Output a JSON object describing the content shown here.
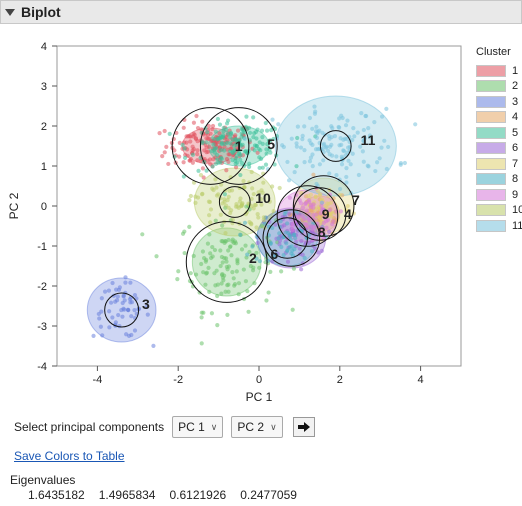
{
  "panel": {
    "title": "Biplot"
  },
  "chart_data": {
    "type": "scatter",
    "xlabel": "PC 1",
    "ylabel": "PC 2",
    "xlim": [
      -5,
      5
    ],
    "ylim": [
      -4,
      4
    ],
    "xticks": [
      "-4",
      "-2",
      "0",
      "2",
      "4"
    ],
    "yticks": [
      "-4",
      "-3",
      "-2",
      "-1",
      "0",
      "1",
      "2",
      "3",
      "4"
    ],
    "legend_title": "Cluster",
    "clusters": [
      {
        "name": "1",
        "color": "#e0525f",
        "center": [
          -1.2,
          1.5
        ],
        "spread": [
          0.55,
          0.3
        ],
        "ellipse": [
          0.7,
          0.45
        ],
        "circle_r": 0.95,
        "label_at": [
          -0.5,
          1.5
        ],
        "n": 160
      },
      {
        "name": "2",
        "color": "#6cc26c",
        "center": [
          -0.8,
          -1.4
        ],
        "spread": [
          0.6,
          0.6
        ],
        "ellipse": [
          0.85,
          0.85
        ],
        "circle_r": 1.0,
        "label_at": [
          -0.15,
          -1.3
        ],
        "n": 130
      },
      {
        "name": "3",
        "color": "#6a82dd",
        "center": [
          -3.4,
          -2.6
        ],
        "spread": [
          0.35,
          0.35
        ],
        "ellipse": [
          0.85,
          0.8
        ],
        "circle_r": 0.42,
        "label_at": [
          -2.8,
          -2.45
        ],
        "n": 60
      },
      {
        "name": "4",
        "color": "#e6a868",
        "center": [
          1.5,
          -0.2
        ],
        "spread": [
          0.35,
          0.3
        ],
        "ellipse": [
          0.5,
          0.45
        ],
        "circle_r": 0.65,
        "label_at": [
          2.2,
          -0.2
        ],
        "n": 40
      },
      {
        "name": "5",
        "color": "#3bbf99",
        "center": [
          -0.5,
          1.5
        ],
        "spread": [
          0.6,
          0.3
        ],
        "ellipse": [
          0.75,
          0.5
        ],
        "circle_r": 0.95,
        "label_at": [
          0.3,
          1.55
        ],
        "n": 150
      },
      {
        "name": "6",
        "color": "#9a68d6",
        "center": [
          0.8,
          -0.8
        ],
        "spread": [
          0.4,
          0.35
        ],
        "ellipse": [
          0.85,
          0.75
        ],
        "circle_r": 0.7,
        "label_at": [
          0.38,
          -1.2
        ],
        "n": 70
      },
      {
        "name": "7",
        "color": "#e0d070",
        "center": [
          1.6,
          0.0
        ],
        "spread": [
          0.35,
          0.3
        ],
        "ellipse": [
          0.75,
          0.7
        ],
        "circle_r": 0.75,
        "label_at": [
          2.4,
          0.15
        ],
        "n": 50
      },
      {
        "name": "8",
        "color": "#4bb0c4",
        "center": [
          0.7,
          -0.8
        ],
        "spread": [
          0.4,
          0.35
        ],
        "ellipse": [
          0.75,
          0.7
        ],
        "circle_r": 0.5,
        "label_at": [
          1.55,
          -0.65
        ],
        "n": 60
      },
      {
        "name": "9",
        "color": "#d77ad9",
        "center": [
          1.2,
          -0.25
        ],
        "spread": [
          0.35,
          0.3
        ],
        "ellipse": [
          0.75,
          0.65
        ],
        "circle_r": 0.75,
        "label_at": [
          1.65,
          -0.2
        ],
        "n": 60
      },
      {
        "name": "10",
        "color": "#b9cc6a",
        "center": [
          -0.6,
          0.1
        ],
        "spread": [
          0.5,
          0.35
        ],
        "ellipse": [
          1.0,
          0.85
        ],
        "circle_r": 0.38,
        "label_at": [
          0.1,
          0.2
        ],
        "n": 90
      },
      {
        "name": "11",
        "color": "#7ac2dc",
        "center": [
          1.9,
          1.5
        ],
        "spread": [
          0.75,
          0.45
        ],
        "ellipse": [
          1.5,
          1.25
        ],
        "circle_r": 0.38,
        "label_at": [
          2.7,
          1.65
        ],
        "n": 140
      }
    ]
  },
  "controls": {
    "select_label": "Select principal components",
    "pc_x": "PC 1",
    "pc_y": "PC 2"
  },
  "links": {
    "save_colors": "Save Colors to Table"
  },
  "eigenvalues": {
    "title": "Eigenvalues",
    "values": [
      "1.6435182",
      "1.4965834",
      "0.6121926",
      "0.2477059"
    ]
  }
}
